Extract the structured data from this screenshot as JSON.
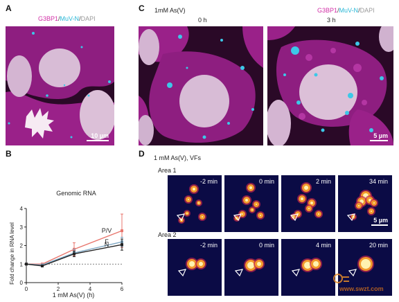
{
  "panels": {
    "a": {
      "letter": "A"
    },
    "b": {
      "letter": "B"
    },
    "c": {
      "letter": "C",
      "condition": "1mM As(V)",
      "time_0": "0 h",
      "time_3": "3 h"
    },
    "d": {
      "letter": "D",
      "condition": "1 mM As(V), VFs",
      "area1": "Area 1",
      "area2": "Area 2"
    }
  },
  "legend": {
    "g3bp1": "G3BP1",
    "sep": "/",
    "muvn": "MuV-N",
    "dapi": "DAPI"
  },
  "scale": {
    "a": "10 µm",
    "c": "5 µm",
    "d": "5 µm"
  },
  "area1_times": [
    "-2 min",
    "0 min",
    "2 min",
    "34 min"
  ],
  "area2_times": [
    "-2 min",
    "0 min",
    "4 min",
    "20 min"
  ],
  "colors": {
    "magenta": "#a01d8c",
    "cyan": "#3cc8e8",
    "nucleus": "#d9b9d6",
    "dark": "#2b0a2a",
    "series_pv": "#e8766d",
    "series_f": "#7ea7c4",
    "series_n": "#222222"
  },
  "watermark": "www.swzt.com",
  "chart_data": {
    "type": "line",
    "title": "Genomic RNA",
    "xlabel": "1 mM As(V) (h)",
    "ylabel": "Fold change in RNA level",
    "xlim": [
      0,
      6
    ],
    "ylim": [
      0,
      4
    ],
    "xticks": [
      0,
      2,
      4,
      6
    ],
    "yticks": [
      0,
      1,
      2,
      3,
      4
    ],
    "reference_line": 1,
    "series": [
      {
        "name": "P/V",
        "x": [
          0,
          1,
          3,
          6
        ],
        "y": [
          1.0,
          1.0,
          1.8,
          2.8
        ],
        "err": [
          0,
          0.05,
          0.35,
          0.9
        ],
        "color": "#e8766d"
      },
      {
        "name": "F",
        "x": [
          0,
          1,
          3,
          6
        ],
        "y": [
          1.0,
          0.95,
          1.6,
          2.2
        ],
        "err": [
          0,
          0.05,
          0.2,
          0.25
        ],
        "color": "#7ea7c4"
      },
      {
        "name": "N",
        "x": [
          0,
          1,
          3,
          6
        ],
        "y": [
          1.0,
          0.9,
          1.55,
          2.05
        ],
        "err": [
          0,
          0.05,
          0.15,
          0.3
        ],
        "color": "#222222"
      }
    ]
  }
}
